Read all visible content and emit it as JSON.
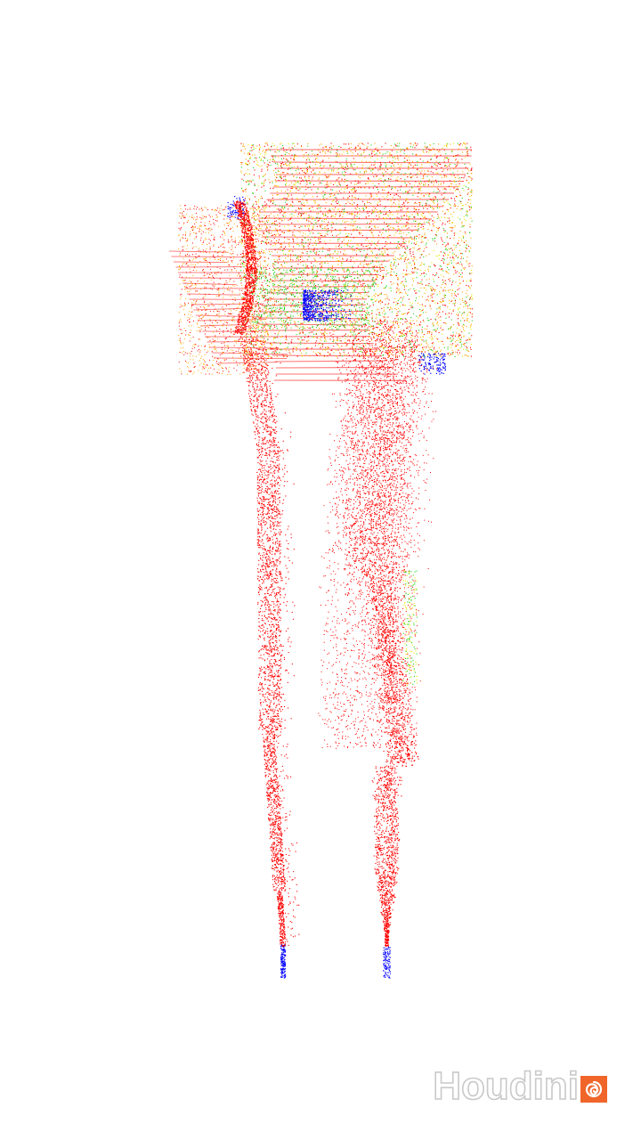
{
  "scene": {
    "description_colors": {
      "background": "#ffffff",
      "fast": "#ff0000",
      "medium": "#ffa500",
      "slow_mid": "#e8e800",
      "slower": "#22d222",
      "slowest": "#0000ff"
    }
  },
  "watermark": {
    "text": "Houdini",
    "logo_icon": "houdini-swirl-icon",
    "badge_color": "#f0652a"
  }
}
